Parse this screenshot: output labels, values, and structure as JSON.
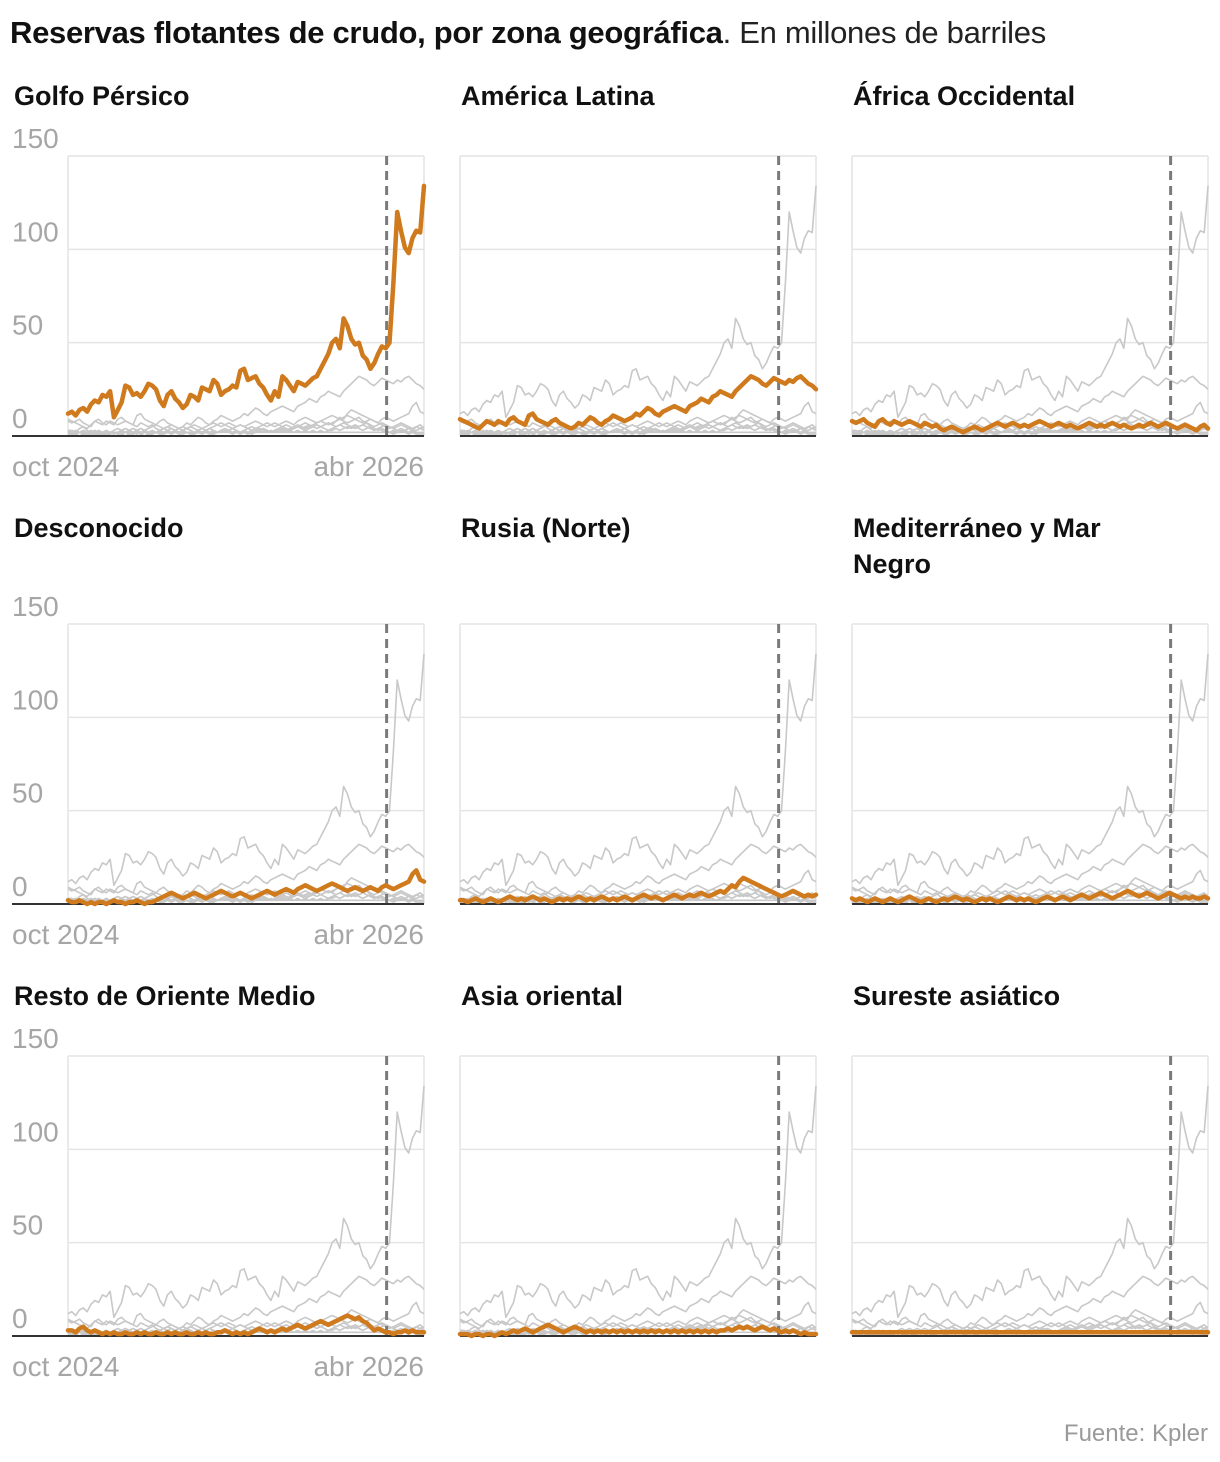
{
  "header": {
    "title": "Reservas flotantes de crudo, por zona geográfica",
    "subtitle": ". En millones de barriles"
  },
  "source": "Fuente: Kpler",
  "chart_data": {
    "type": "line",
    "layout": "small-multiples",
    "ylim": [
      0,
      150
    ],
    "yticks": [
      0,
      50,
      100,
      150
    ],
    "xtick_labels": [
      "oct 2024",
      "abr 2026"
    ],
    "x_range": [
      "oct 2024",
      "may 2026"
    ],
    "reference_line": "abr 2026",
    "colors": {
      "highlight": "#d07a1e",
      "context": "#c8c8c8",
      "reference": "#7a7a7a",
      "grid": "#e4e4e4",
      "axis": "#333333"
    },
    "panels": [
      {
        "name": "Golfo Pérsico",
        "values": [
          12,
          13,
          11,
          14,
          15,
          13,
          17,
          19,
          18,
          22,
          21,
          24,
          10,
          14,
          18,
          27,
          26,
          22,
          23,
          21,
          24,
          28,
          27,
          25,
          19,
          16,
          22,
          24,
          20,
          18,
          15,
          17,
          22,
          21,
          19,
          26,
          25,
          24,
          30,
          28,
          22,
          24,
          25,
          27,
          26,
          35,
          36,
          30,
          31,
          32,
          28,
          26,
          22,
          19,
          24,
          21,
          32,
          30,
          27,
          24,
          29,
          28,
          27,
          29,
          31,
          32,
          36,
          40,
          44,
          50,
          52,
          47,
          63,
          59,
          52,
          49,
          50,
          43,
          41,
          36,
          39,
          44,
          48,
          47,
          50,
          82,
          120,
          110,
          101,
          98,
          106,
          110,
          109,
          134
        ]
      },
      {
        "name": "América Latina",
        "values": [
          9,
          8,
          7,
          6,
          5,
          4,
          6,
          8,
          7,
          6,
          8,
          7,
          6,
          9,
          10,
          8,
          7,
          6,
          11,
          12,
          9,
          8,
          7,
          6,
          8,
          9,
          7,
          6,
          5,
          4,
          5,
          7,
          6,
          8,
          10,
          9,
          7,
          6,
          8,
          9,
          11,
          10,
          9,
          8,
          9,
          10,
          12,
          11,
          13,
          15,
          14,
          12,
          11,
          13,
          14,
          15,
          16,
          15,
          14,
          13,
          16,
          17,
          18,
          20,
          19,
          18,
          21,
          22,
          24,
          23,
          22,
          21,
          24,
          26,
          28,
          30,
          32,
          31,
          30,
          28,
          27,
          29,
          31,
          30,
          29,
          28,
          30,
          29,
          31,
          32,
          30,
          28,
          27,
          25
        ]
      },
      {
        "name": "África Occidental",
        "values": [
          8,
          7,
          8,
          9,
          7,
          6,
          5,
          8,
          9,
          7,
          6,
          8,
          7,
          6,
          7,
          8,
          7,
          6,
          5,
          7,
          6,
          5,
          6,
          4,
          3,
          4,
          5,
          4,
          3,
          2,
          3,
          4,
          5,
          4,
          3,
          4,
          5,
          6,
          7,
          6,
          5,
          6,
          7,
          6,
          5,
          6,
          5,
          6,
          7,
          8,
          7,
          6,
          5,
          6,
          7,
          6,
          5,
          6,
          5,
          4,
          5,
          6,
          7,
          6,
          5,
          6,
          5,
          6,
          7,
          6,
          5,
          6,
          5,
          4,
          5,
          6,
          5,
          6,
          7,
          6,
          5,
          6,
          7,
          6,
          5,
          4,
          5,
          6,
          5,
          4,
          3,
          5,
          6,
          4
        ]
      },
      {
        "name": "Desconocido",
        "values": [
          2,
          1,
          1,
          2,
          1,
          0,
          1,
          0,
          1,
          1,
          0,
          1,
          2,
          1,
          1,
          0,
          1,
          1,
          2,
          1,
          0,
          1,
          1,
          2,
          3,
          4,
          5,
          6,
          5,
          4,
          3,
          4,
          5,
          6,
          5,
          4,
          3,
          4,
          5,
          6,
          7,
          6,
          5,
          4,
          5,
          6,
          5,
          4,
          3,
          4,
          5,
          6,
          7,
          6,
          5,
          6,
          7,
          8,
          7,
          6,
          8,
          9,
          10,
          9,
          8,
          7,
          8,
          9,
          10,
          11,
          10,
          9,
          8,
          7,
          8,
          9,
          8,
          7,
          8,
          9,
          8,
          7,
          9,
          10,
          9,
          8,
          9,
          10,
          11,
          12,
          16,
          18,
          13,
          12
        ]
      },
      {
        "name": "Rusia (Norte)",
        "values": [
          2,
          2,
          1,
          2,
          3,
          2,
          1,
          2,
          3,
          2,
          1,
          2,
          3,
          4,
          3,
          2,
          3,
          2,
          3,
          4,
          3,
          2,
          3,
          2,
          1,
          2,
          3,
          2,
          3,
          2,
          3,
          4,
          3,
          2,
          3,
          2,
          3,
          4,
          3,
          2,
          3,
          2,
          3,
          4,
          3,
          2,
          3,
          4,
          5,
          4,
          3,
          4,
          3,
          2,
          3,
          4,
          5,
          4,
          3,
          4,
          5,
          4,
          5,
          6,
          5,
          4,
          5,
          6,
          7,
          6,
          8,
          10,
          9,
          12,
          14,
          13,
          12,
          11,
          10,
          9,
          8,
          7,
          6,
          5,
          4,
          5,
          6,
          7,
          6,
          5,
          4,
          5,
          4,
          5
        ]
      },
      {
        "name": "Mediterráneo y Mar Negro",
        "values": [
          3,
          2,
          3,
          2,
          1,
          2,
          3,
          2,
          1,
          2,
          3,
          2,
          1,
          2,
          3,
          4,
          3,
          2,
          1,
          2,
          3,
          2,
          1,
          2,
          3,
          2,
          3,
          4,
          3,
          2,
          3,
          2,
          1,
          2,
          3,
          2,
          3,
          2,
          1,
          2,
          3,
          4,
          3,
          2,
          3,
          2,
          3,
          2,
          1,
          2,
          3,
          4,
          3,
          2,
          3,
          4,
          3,
          2,
          3,
          4,
          5,
          4,
          3,
          4,
          5,
          6,
          5,
          4,
          3,
          4,
          5,
          6,
          7,
          6,
          5,
          4,
          5,
          6,
          5,
          4,
          3,
          4,
          5,
          6,
          5,
          4,
          3,
          4,
          3,
          4,
          3,
          3,
          4,
          3
        ]
      },
      {
        "name": "Resto de Oriente Medio",
        "values": [
          3,
          3,
          2,
          4,
          5,
          3,
          2,
          3,
          2,
          1,
          2,
          1,
          2,
          1,
          1,
          2,
          1,
          1,
          2,
          1,
          2,
          1,
          1,
          2,
          1,
          1,
          2,
          1,
          2,
          1,
          1,
          2,
          1,
          1,
          2,
          1,
          2,
          1,
          1,
          2,
          2,
          3,
          2,
          1,
          2,
          1,
          2,
          1,
          2,
          3,
          4,
          3,
          2,
          3,
          2,
          3,
          4,
          3,
          4,
          5,
          6,
          5,
          4,
          5,
          6,
          7,
          8,
          7,
          6,
          7,
          8,
          9,
          10,
          11,
          10,
          9,
          10,
          8,
          7,
          5,
          3,
          4,
          3,
          2,
          2,
          1,
          2,
          2,
          3,
          2,
          3,
          2,
          2,
          2
        ]
      },
      {
        "name": "Asia oriental",
        "values": [
          1,
          1,
          1,
          0,
          1,
          1,
          0,
          1,
          1,
          0,
          1,
          2,
          1,
          2,
          3,
          2,
          3,
          4,
          3,
          2,
          3,
          4,
          5,
          6,
          5,
          4,
          3,
          2,
          3,
          4,
          5,
          4,
          3,
          2,
          3,
          2,
          3,
          2,
          3,
          2,
          3,
          2,
          3,
          2,
          3,
          2,
          3,
          2,
          3,
          2,
          3,
          2,
          3,
          2,
          3,
          2,
          3,
          2,
          3,
          2,
          3,
          2,
          3,
          2,
          3,
          2,
          3,
          2,
          3,
          3,
          4,
          3,
          4,
          5,
          4,
          5,
          4,
          3,
          4,
          5,
          4,
          3,
          4,
          3,
          2,
          3,
          2,
          3,
          2,
          1,
          2,
          1,
          1,
          1
        ]
      },
      {
        "name": "Sureste asiático",
        "values": [
          2,
          2,
          2,
          2,
          2,
          2,
          2,
          2,
          2,
          2,
          2,
          2,
          2,
          2,
          2,
          2,
          2,
          2,
          2,
          2,
          2,
          2,
          2,
          2,
          2,
          2,
          2,
          2,
          2,
          2,
          2,
          2,
          2,
          2,
          2,
          2,
          2,
          2,
          2,
          2,
          2,
          2,
          2,
          2,
          2,
          2,
          2,
          2,
          2,
          2,
          2,
          2,
          2,
          2,
          2,
          2,
          2,
          2,
          2,
          2,
          2,
          2,
          2,
          2,
          2,
          2,
          2,
          2,
          2,
          2,
          2,
          2,
          2,
          2,
          2,
          2,
          2,
          2,
          2,
          2,
          2,
          2,
          2,
          2,
          2,
          2,
          2,
          2,
          2,
          2,
          2,
          2,
          2,
          2
        ]
      }
    ]
  }
}
